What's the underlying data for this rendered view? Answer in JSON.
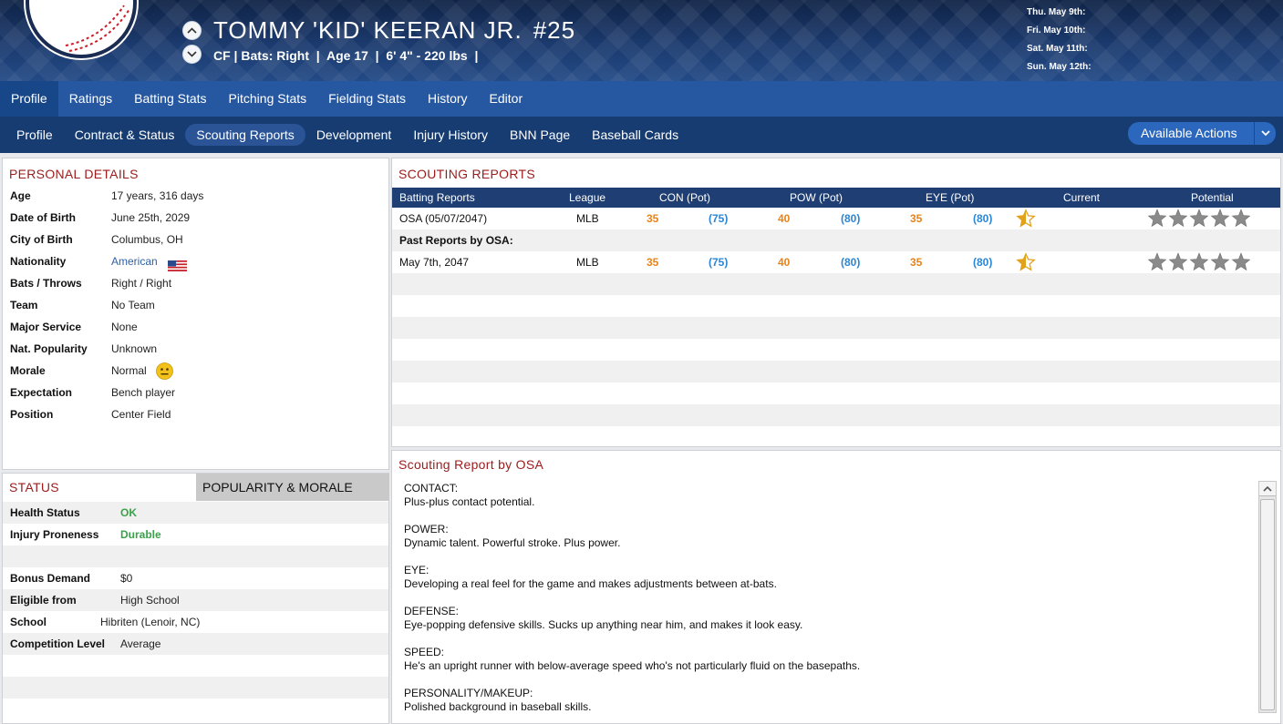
{
  "header": {
    "name": "TOMMY 'KID' KEERAN JR.",
    "number": "#25",
    "subline": "CF | Bats: Right  |  Age 17  |  6' 4\" - 220 lbs  |",
    "schedule": [
      "Thu. May 9th:",
      "Fri. May 10th:",
      "Sat. May 11th:",
      "Sun. May 12th:"
    ]
  },
  "nav_main": [
    "Profile",
    "Ratings",
    "Batting Stats",
    "Pitching Stats",
    "Fielding Stats",
    "History",
    "Editor"
  ],
  "nav_sub": [
    "Profile",
    "Contract & Status",
    "Scouting Reports",
    "Development",
    "Injury History",
    "BNN Page",
    "Baseball Cards"
  ],
  "actions_label": "Available Actions",
  "personal": {
    "title": "PERSONAL DETAILS",
    "rows": [
      {
        "label": "Age",
        "value": "17 years, 316 days"
      },
      {
        "label": "Date of Birth",
        "value": "June 25th, 2029"
      },
      {
        "label": "City of Birth",
        "value": "Columbus, OH"
      },
      {
        "label": "Nationality",
        "value": "American"
      },
      {
        "label": "Bats / Throws",
        "value": "Right / Right"
      },
      {
        "label": "Team",
        "value": "No Team"
      },
      {
        "label": "Major Service",
        "value": "None"
      },
      {
        "label": "Nat. Popularity",
        "value": "Unknown"
      },
      {
        "label": "Morale",
        "value": "Normal"
      },
      {
        "label": "Expectation",
        "value": "Bench player"
      },
      {
        "label": "Position",
        "value": "Center Field"
      }
    ]
  },
  "status": {
    "tab_status": "STATUS",
    "tab_popularity": "POPULARITY & MORALE",
    "health_label": "Health Status",
    "health_value": "OK",
    "injury_label": "Injury Proneness",
    "injury_value": "Durable",
    "bonus_label": "Bonus Demand",
    "bonus_value": "$0",
    "eligible_label": "Eligible from",
    "eligible_value": "High School",
    "school_label": "School",
    "school_value": "Hibriten (Lenoir, NC)",
    "competition_label": "Competition Level",
    "competition_value": "Average"
  },
  "scouting": {
    "title": "SCOUTING REPORTS",
    "columns": [
      "Batting Reports",
      "League",
      "CON (Pot)",
      "POW (Pot)",
      "EYE (Pot)",
      "Current",
      "Potential"
    ],
    "row1": {
      "name": "OSA (05/07/2047)",
      "league": "MLB",
      "con": "35",
      "con_pot": "(75)",
      "pow": "40",
      "pow_pot": "(80)",
      "eye": "35",
      "eye_pot": "(80)",
      "current_stars": 0.5,
      "potential_stars": 5
    },
    "past_label": "Past Reports by OSA:",
    "row2": {
      "name": "May 7th, 2047",
      "league": "MLB",
      "con": "35",
      "con_pot": "(75)",
      "pow": "40",
      "pow_pot": "(80)",
      "eye": "35",
      "eye_pot": "(80)",
      "current_stars": 0.5,
      "potential_stars": 5
    }
  },
  "report": {
    "title": "Scouting Report by OSA",
    "blocks": [
      {
        "heading": "CONTACT:",
        "text": "Plus-plus contact potential."
      },
      {
        "heading": "POWER:",
        "text": "Dynamic talent. Powerful stroke. Plus power."
      },
      {
        "heading": "EYE:",
        "text": "Developing a real feel for the game and makes adjustments between at-bats."
      },
      {
        "heading": "DEFENSE:",
        "text": "Eye-popping defensive skills. Sucks up anything near him, and makes it look easy."
      },
      {
        "heading": "SPEED:",
        "text": "He's an upright runner with below-average speed who's not particularly fluid on the basepaths."
      },
      {
        "heading": "PERSONALITY/MAKEUP:",
        "text": "Polished background in baseball skills."
      }
    ]
  },
  "colors": {
    "ok_green": "#3aa34a",
    "section_red": "#9c1b1b",
    "rating_orange": "#e8821b",
    "rating_blue": "#2a86d6"
  }
}
